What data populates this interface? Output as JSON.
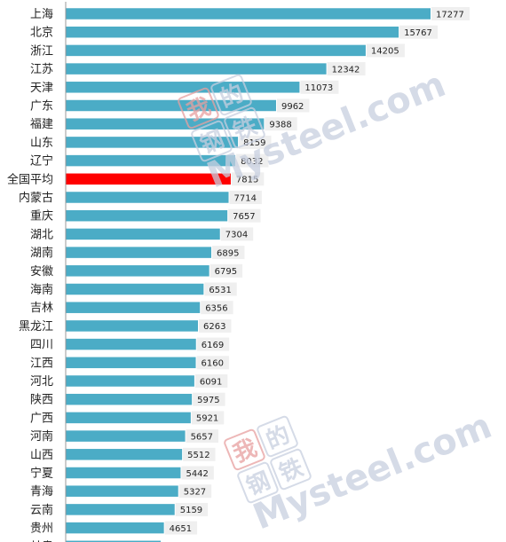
{
  "chart_data": {
    "type": "bar",
    "orientation": "horizontal",
    "categories": [
      "上海",
      "北京",
      "浙江",
      "江苏",
      "天津",
      "广东",
      "福建",
      "山东",
      "辽宁",
      "全国平均",
      "内蒙古",
      "重庆",
      "湖北",
      "湖南",
      "安徽",
      "海南",
      "吉林",
      "黑龙江",
      "四川",
      "江西",
      "河北",
      "陕西",
      "广西",
      "河南",
      "山西",
      "宁夏",
      "青海",
      "云南",
      "贵州",
      "甘肃"
    ],
    "values": [
      17277,
      15767,
      14205,
      12342,
      11073,
      9962,
      9388,
      8159,
      8032,
      7815,
      7714,
      7657,
      7304,
      6895,
      6795,
      6531,
      6356,
      6263,
      6169,
      6160,
      6091,
      5975,
      5921,
      5657,
      5512,
      5442,
      5327,
      5159,
      4651,
      4500
    ],
    "value_labels": [
      "17277",
      "15767",
      "14205",
      "12342",
      "11073",
      "9962",
      "9388",
      "8159",
      "8032",
      "7815",
      "7714",
      "7657",
      "7304",
      "6895",
      "6795",
      "6531",
      "6356",
      "6263",
      "6169",
      "6160",
      "6091",
      "5975",
      "5921",
      "5657",
      "5512",
      "5442",
      "5327",
      "5159",
      "4651",
      ""
    ],
    "highlight_category": "全国平均",
    "colors": {
      "bar": "#4bacc6",
      "highlight": "#ff0000",
      "label_bg": "#efefef"
    },
    "xlim": [
      0,
      17277
    ],
    "grid": false,
    "legend": "none"
  },
  "watermark": {
    "logo_chars": [
      "我",
      "的",
      "钢",
      "铁"
    ],
    "text": "Mysteel.com",
    "color": "#c8cfe0"
  }
}
